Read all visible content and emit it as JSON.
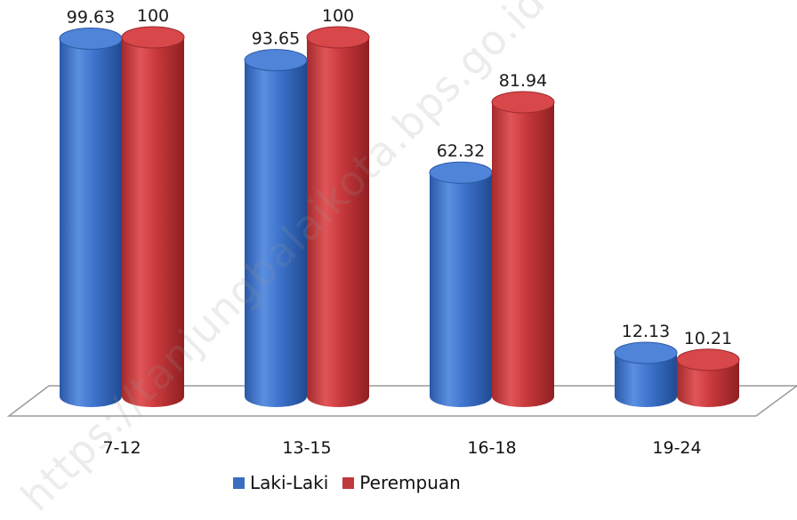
{
  "chart_data": {
    "type": "bar",
    "categories": [
      "7-12",
      "13-15",
      "16-18",
      "19-24"
    ],
    "series": [
      {
        "name": "Laki-Laki",
        "values": [
          99.63,
          93.65,
          62.32,
          12.13
        ],
        "color": "#3a6fc0"
      },
      {
        "name": "Perempuan",
        "values": [
          100,
          100,
          81.94,
          10.21
        ],
        "color": "#c0393b"
      }
    ],
    "value_labels": [
      [
        "99.63",
        "93.65",
        "62.32",
        "12.13"
      ],
      [
        "100",
        "100",
        "81.94",
        "10.21"
      ]
    ],
    "ylim": [
      0,
      100
    ],
    "grid": false,
    "legend_position": "bottom",
    "style": "3d-cylinder"
  },
  "watermark": "https://tanjungbalaikota.bps.go.id"
}
